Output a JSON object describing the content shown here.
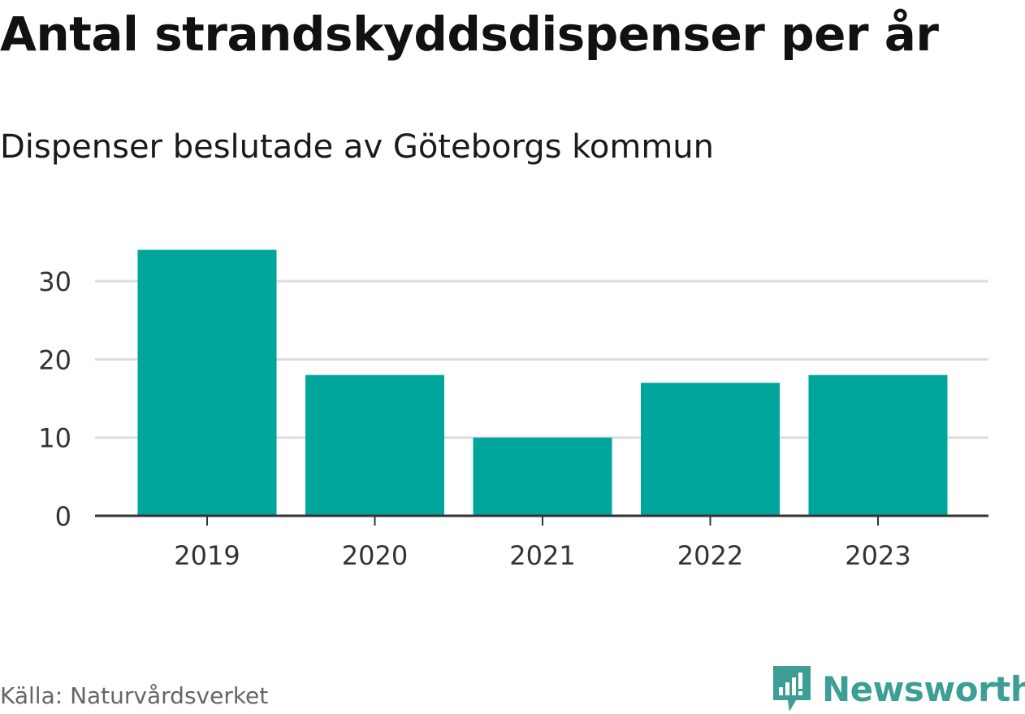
{
  "header": {
    "title": "Antal strandskyddsdispenser per år",
    "subtitle": "Dispenser beslutade av Göteborgs kommun"
  },
  "footer": {
    "source": "Källa: Naturvårdsverket",
    "brand": "Newsworthy"
  },
  "colors": {
    "bar": "#00a59b",
    "grid": "#dddddd",
    "axis": "#333333",
    "brand": "#3d9e95"
  },
  "icons": {
    "brand_logo": "newsworthy-logo-icon"
  },
  "chart_data": {
    "type": "bar",
    "title": "Antal strandskyddsdispenser per år",
    "subtitle": "Dispenser beslutade av Göteborgs kommun",
    "categories": [
      "2019",
      "2020",
      "2021",
      "2022",
      "2023"
    ],
    "values": [
      34,
      18,
      10,
      17,
      18
    ],
    "xlabel": "",
    "ylabel": "",
    "ylim": [
      0,
      35
    ],
    "yticks": [
      0,
      10,
      20,
      30
    ],
    "grid": true,
    "legend": "none"
  }
}
